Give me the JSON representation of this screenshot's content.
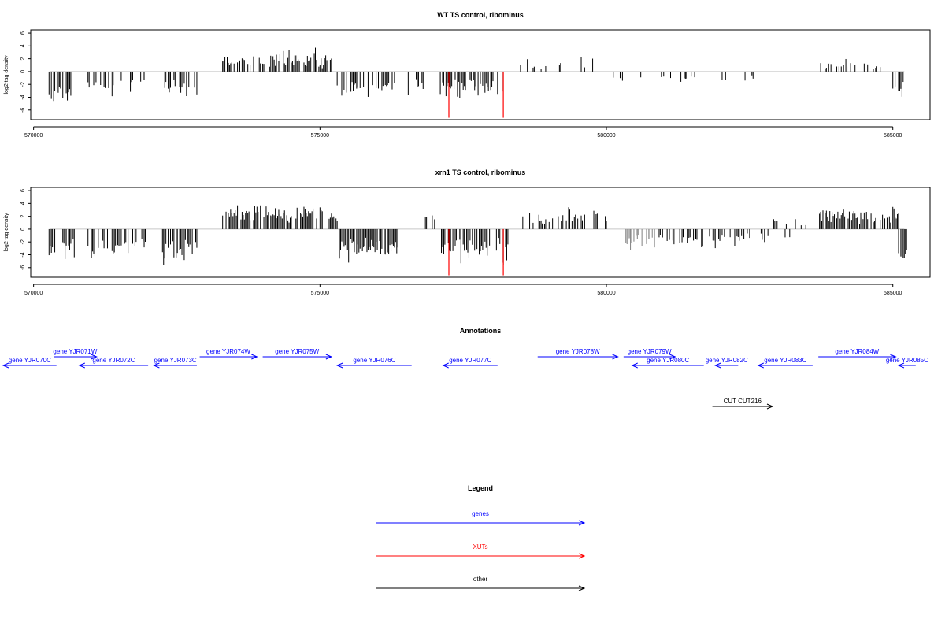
{
  "colors": {
    "genes": "#0000ff",
    "xuts": "#ff0000",
    "other": "#000000",
    "density_main": "#000000",
    "density_light": "#808080"
  },
  "chart_data": [
    {
      "type": "bar",
      "title": "WT TS control, ribominus",
      "ylabel": "log2 tag density",
      "xlim": [
        569950,
        585650
      ],
      "ylim": [
        -7.5,
        6.5
      ],
      "yticks": [
        "6",
        "4",
        "2",
        "0",
        "-2",
        "-4",
        "-6"
      ],
      "xticks": [
        "570000",
        "575000",
        "580000",
        "585000"
      ],
      "regions": [
        {
          "start": 570250,
          "end": 570650,
          "sign": -1,
          "base": 2.5,
          "amp": 3.0,
          "density": 0.55,
          "color": "#000000"
        },
        {
          "start": 570950,
          "end": 571950,
          "sign": -1,
          "base": 1.6,
          "amp": 2.4,
          "density": 0.45,
          "color": "#000000"
        },
        {
          "start": 572250,
          "end": 572850,
          "sign": -1,
          "base": 2.0,
          "amp": 2.6,
          "density": 0.55,
          "color": "#000000"
        },
        {
          "start": 573300,
          "end": 575200,
          "sign": 1,
          "base": 1.0,
          "amp": 3.0,
          "density": 0.6,
          "color": "#000000"
        },
        {
          "start": 575300,
          "end": 576300,
          "sign": -1,
          "base": 1.8,
          "amp": 2.5,
          "density": 0.5,
          "color": "#000000"
        },
        {
          "start": 576500,
          "end": 576900,
          "sign": -1,
          "base": 1.5,
          "amp": 2.0,
          "density": 0.4,
          "color": "#000000"
        },
        {
          "start": 577100,
          "end": 578200,
          "sign": -1,
          "base": 2.0,
          "amp": 2.8,
          "density": 0.6,
          "color": "#000000"
        },
        {
          "start": 578500,
          "end": 579900,
          "sign": 1,
          "base": 0.5,
          "amp": 1.8,
          "density": 0.12,
          "color": "#000000"
        },
        {
          "start": 580100,
          "end": 581600,
          "sign": -1,
          "base": 0.6,
          "amp": 1.5,
          "density": 0.12,
          "color": "#000000"
        },
        {
          "start": 581600,
          "end": 582600,
          "sign": -1,
          "base": 0.5,
          "amp": 2.0,
          "density": 0.12,
          "color": "#000000"
        },
        {
          "start": 583700,
          "end": 584800,
          "sign": 1,
          "base": 0.6,
          "amp": 1.6,
          "density": 0.2,
          "color": "#000000"
        },
        {
          "start": 585000,
          "end": 585200,
          "sign": -1,
          "base": 2.5,
          "amp": 3.5,
          "density": 0.8,
          "color": "#000000"
        }
      ],
      "markers": [
        {
          "x": 577250,
          "y": -7.2,
          "color": "#ff0000"
        },
        {
          "x": 578200,
          "y": -7.2,
          "color": "#ff0000"
        }
      ]
    },
    {
      "type": "bar",
      "title": "xrn1 TS control, ribominus",
      "ylabel": "log2 tag density",
      "xlim": [
        569950,
        585650
      ],
      "ylim": [
        -7.5,
        6.5
      ],
      "yticks": [
        "6",
        "4",
        "2",
        "0",
        "-2",
        "-4",
        "-6"
      ],
      "xticks": [
        "570000",
        "575000",
        "580000",
        "585000"
      ],
      "regions": [
        {
          "start": 570250,
          "end": 570750,
          "sign": -1,
          "base": 2.5,
          "amp": 3.0,
          "density": 0.6,
          "color": "#000000"
        },
        {
          "start": 570950,
          "end": 571950,
          "sign": -1,
          "base": 2.0,
          "amp": 2.8,
          "density": 0.55,
          "color": "#000000"
        },
        {
          "start": 572250,
          "end": 572850,
          "sign": -1,
          "base": 2.5,
          "amp": 3.2,
          "density": 0.7,
          "color": "#000000"
        },
        {
          "start": 573300,
          "end": 575300,
          "sign": 1,
          "base": 1.8,
          "amp": 3.0,
          "density": 0.75,
          "color": "#000000"
        },
        {
          "start": 575300,
          "end": 576400,
          "sign": -1,
          "base": 2.2,
          "amp": 3.0,
          "density": 0.65,
          "color": "#000000"
        },
        {
          "start": 576800,
          "end": 577000,
          "sign": 1,
          "base": 1.0,
          "amp": 2.0,
          "density": 0.4,
          "color": "#000000"
        },
        {
          "start": 577100,
          "end": 578300,
          "sign": -1,
          "base": 2.2,
          "amp": 3.2,
          "density": 0.7,
          "color": "#000000"
        },
        {
          "start": 578500,
          "end": 580000,
          "sign": 1,
          "base": 1.2,
          "amp": 2.2,
          "density": 0.45,
          "color": "#000000"
        },
        {
          "start": 580300,
          "end": 580900,
          "sign": -1,
          "base": 1.2,
          "amp": 2.0,
          "density": 0.55,
          "color": "#808080"
        },
        {
          "start": 580900,
          "end": 582000,
          "sign": -1,
          "base": 1.0,
          "amp": 2.2,
          "density": 0.45,
          "color": "#000000"
        },
        {
          "start": 582000,
          "end": 583200,
          "sign": -1,
          "base": 0.8,
          "amp": 1.8,
          "density": 0.25,
          "color": "#000000"
        },
        {
          "start": 582800,
          "end": 583500,
          "sign": 1,
          "base": 0.8,
          "amp": 1.5,
          "density": 0.25,
          "color": "#000000"
        },
        {
          "start": 583700,
          "end": 585100,
          "sign": 1,
          "base": 1.4,
          "amp": 2.2,
          "density": 0.6,
          "color": "#000000"
        },
        {
          "start": 585100,
          "end": 585250,
          "sign": -1,
          "base": 3.5,
          "amp": 3.5,
          "density": 0.9,
          "color": "#000000"
        }
      ],
      "markers": [
        {
          "x": 577250,
          "y": -7.2,
          "color": "#ff0000"
        },
        {
          "x": 578200,
          "y": -7.2,
          "color": "#ff0000"
        }
      ]
    }
  ],
  "annotations": {
    "title": "Annotations",
    "features": [
      {
        "label": "gene YJR070C",
        "start": 569350,
        "end": 570400,
        "strand": "-",
        "row": 2,
        "kind": "gene"
      },
      {
        "label": "gene YJR071W",
        "start": 570350,
        "end": 571100,
        "strand": "+",
        "row": 1,
        "kind": "gene"
      },
      {
        "label": "gene YJR072C",
        "start": 570800,
        "end": 572000,
        "strand": "-",
        "row": 2,
        "kind": "gene"
      },
      {
        "label": "gene YJR073C",
        "start": 572100,
        "end": 572850,
        "strand": "-",
        "row": 2,
        "kind": "gene"
      },
      {
        "label": "gene YJR074W",
        "start": 572900,
        "end": 573900,
        "strand": "+",
        "row": 1,
        "kind": "gene"
      },
      {
        "label": "gene YJR075W",
        "start": 574000,
        "end": 575200,
        "strand": "+",
        "row": 1,
        "kind": "gene"
      },
      {
        "label": "gene YJR076C",
        "start": 575300,
        "end": 576600,
        "strand": "-",
        "row": 2,
        "kind": "gene"
      },
      {
        "label": "gene YJR077C",
        "start": 577150,
        "end": 578100,
        "strand": "-",
        "row": 2,
        "kind": "gene"
      },
      {
        "label": "gene YJR078W",
        "start": 578800,
        "end": 580200,
        "strand": "+",
        "row": 1,
        "kind": "gene"
      },
      {
        "label": "gene YJR079W",
        "start": 580300,
        "end": 581200,
        "strand": "+",
        "row": 1,
        "kind": "gene"
      },
      {
        "label": "gene YJR080C",
        "start": 580450,
        "end": 581700,
        "strand": "-",
        "row": 2,
        "kind": "gene"
      },
      {
        "label": "gene YJR082C",
        "start": 581900,
        "end": 582300,
        "strand": "-",
        "row": 2,
        "kind": "gene"
      },
      {
        "label": "gene YJR083C",
        "start": 582650,
        "end": 583600,
        "strand": "-",
        "row": 2,
        "kind": "gene"
      },
      {
        "label": "gene YJR084W",
        "start": 583700,
        "end": 585050,
        "strand": "+",
        "row": 1,
        "kind": "gene"
      },
      {
        "label": "gene YJR085C",
        "start": 585100,
        "end": 585400,
        "strand": "-",
        "row": 2,
        "kind": "gene"
      },
      {
        "label": "CUT CUT216",
        "start": 581850,
        "end": 582900,
        "strand": "+",
        "row": 3,
        "kind": "other"
      }
    ]
  },
  "legend": {
    "title": "Legend",
    "items": [
      {
        "label": "genes",
        "kind": "gene"
      },
      {
        "label": "XUTs",
        "kind": "xut"
      },
      {
        "label": "other",
        "kind": "other"
      }
    ]
  }
}
